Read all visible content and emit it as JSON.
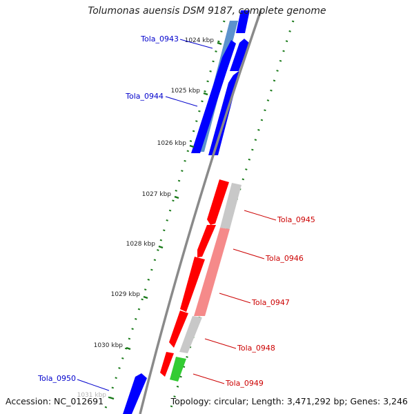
{
  "title": "Tolumonas auensis DSM 9187, complete genome",
  "footer": {
    "accession": "Accession: NC_012691",
    "topology": "Topology: circular; Length: 3,471,292 bp; Genes: 3,246"
  },
  "colors": {
    "backbone": "#8a8a8a",
    "tick": "#1a7a1a",
    "forward_gene": "#0000ff",
    "forward_gene_light": "#4a86c8",
    "reverse_gene": "#ff0000",
    "reverse_gene_light": "#f58a8a",
    "rna_gene": "#33cc33",
    "other_feature": "#c8c8c8",
    "label_forward": "#0000cc",
    "label_reverse": "#cc0000"
  },
  "ruler": {
    "unit": "kbp",
    "labels": [
      "1024 kbp",
      "1025 kbp",
      "1026 kbp",
      "1027 kbp",
      "1028 kbp",
      "1029 kbp",
      "1030 kbp",
      "1031 kbp"
    ]
  },
  "genes": [
    {
      "name": "Tola_0943",
      "strand": "forward"
    },
    {
      "name": "Tola_0944",
      "strand": "forward"
    },
    {
      "name": "Tola_0945",
      "strand": "reverse"
    },
    {
      "name": "Tola_0946",
      "strand": "reverse"
    },
    {
      "name": "Tola_0947",
      "strand": "reverse"
    },
    {
      "name": "Tola_0948",
      "strand": "reverse"
    },
    {
      "name": "Tola_0949",
      "strand": "reverse"
    },
    {
      "name": "Tola_0950",
      "strand": "forward"
    }
  ]
}
